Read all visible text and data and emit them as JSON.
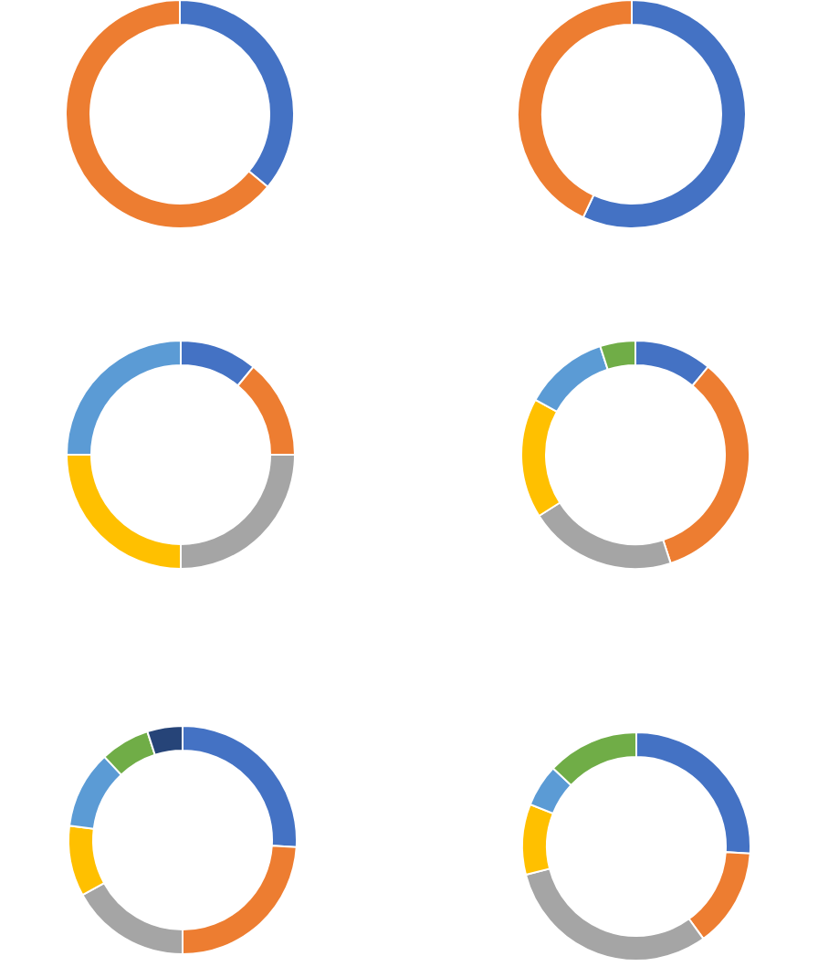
{
  "chart_data": [
    {
      "type": "donut",
      "categories": [
        null,
        null
      ],
      "values": [
        36,
        64
      ],
      "colors": [
        "#4472c4",
        "#ed7d31"
      ]
    },
    {
      "type": "donut",
      "categories": [
        null,
        null
      ],
      "values": [
        57,
        43
      ],
      "colors": [
        "#4472c4",
        "#ed7d31"
      ]
    },
    {
      "type": "donut",
      "categories": [
        null,
        null,
        null,
        null,
        null
      ],
      "values": [
        11,
        14,
        25,
        25,
        25
      ],
      "colors": [
        "#4472c4",
        "#ed7d31",
        "#a5a5a5",
        "#ffc000",
        "#5b9bd5"
      ]
    },
    {
      "type": "donut",
      "categories": [
        null,
        null,
        null,
        null,
        null,
        null
      ],
      "values": [
        11,
        34,
        21,
        17,
        12,
        5
      ],
      "colors": [
        "#4472c4",
        "#ed7d31",
        "#a5a5a5",
        "#ffc000",
        "#5b9bd5",
        "#70ad47"
      ]
    },
    {
      "type": "donut",
      "categories": [
        null,
        null,
        null,
        null,
        null,
        null,
        null
      ],
      "values": [
        26,
        24,
        17,
        10,
        11,
        7,
        5
      ],
      "colors": [
        "#4472c4",
        "#ed7d31",
        "#a5a5a5",
        "#ffc000",
        "#5b9bd5",
        "#70ad47",
        "#264478"
      ]
    },
    {
      "type": "donut",
      "categories": [
        null,
        null,
        null,
        null,
        null,
        null
      ],
      "values": [
        26,
        14,
        31,
        10,
        6,
        13
      ],
      "colors": [
        "#4472c4",
        "#ed7d31",
        "#a5a5a5",
        "#ffc000",
        "#5b9bd5",
        "#70ad47"
      ]
    }
  ]
}
